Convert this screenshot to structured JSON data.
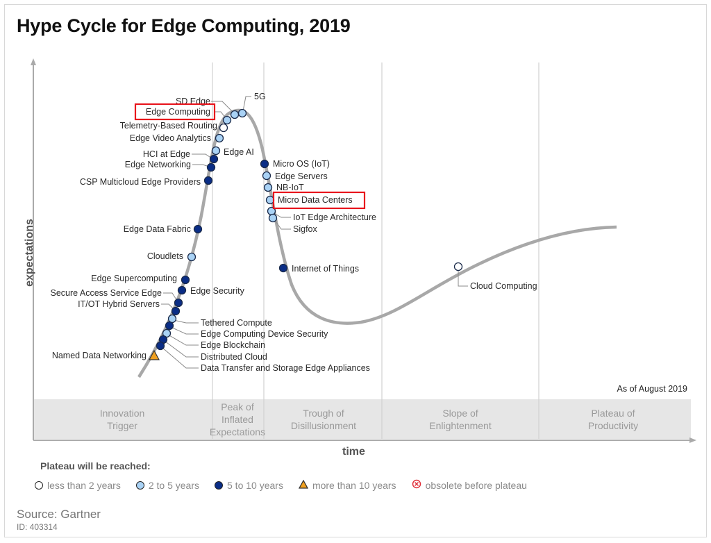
{
  "chart_data": {
    "type": "hype-cycle",
    "title": "Hype Cycle for Edge Computing, 2019",
    "xlabel": "time",
    "ylabel": "expectations",
    "as_of": "As of August 2019",
    "phases": [
      "Innovation Trigger",
      "Peak of Inflated Expectations",
      "Trough of Disillusionment",
      "Slope of Enlightenment",
      "Plateau of Productivity"
    ],
    "legend_title": "Plateau will be reached:",
    "legend": [
      {
        "key": "lt2",
        "label": "less than 2 years",
        "color": "#ffffff"
      },
      {
        "key": "2to5",
        "label": "2 to 5 years",
        "color": "#a9d2f5"
      },
      {
        "key": "5to10",
        "label": "5 to 10 years",
        "color": "#0a2d86"
      },
      {
        "key": "gt10",
        "label": "more than 10 years",
        "color": "#f0a020"
      },
      {
        "key": "obsolete",
        "label": "obsolete before plateau",
        "color": "#e0303a"
      }
    ],
    "technologies": [
      {
        "name": "SD Edge",
        "plateau": "2to5",
        "phase": "Peak of Inflated Expectations"
      },
      {
        "name": "5G",
        "plateau": "2to5",
        "phase": "Peak of Inflated Expectations"
      },
      {
        "name": "Edge Computing",
        "plateau": "2to5",
        "phase": "Peak of Inflated Expectations",
        "highlighted": true
      },
      {
        "name": "Telemetry-Based Routing",
        "plateau": "lt2",
        "phase": "Peak of Inflated Expectations"
      },
      {
        "name": "Edge Video Analytics",
        "plateau": "2to5",
        "phase": "Peak of Inflated Expectations"
      },
      {
        "name": "Edge AI",
        "plateau": "2to5",
        "phase": "Peak of Inflated Expectations"
      },
      {
        "name": "HCI at Edge",
        "plateau": "5to10",
        "phase": "Innovation Trigger"
      },
      {
        "name": "Edge Networking",
        "plateau": "5to10",
        "phase": "Innovation Trigger"
      },
      {
        "name": "CSP Multicloud Edge Providers",
        "plateau": "5to10",
        "phase": "Innovation Trigger"
      },
      {
        "name": "Edge Data Fabric",
        "plateau": "5to10",
        "phase": "Innovation Trigger"
      },
      {
        "name": "Cloudlets",
        "plateau": "2to5",
        "phase": "Innovation Trigger"
      },
      {
        "name": "Edge Supercomputing",
        "plateau": "5to10",
        "phase": "Innovation Trigger"
      },
      {
        "name": "Edge Security",
        "plateau": "5to10",
        "phase": "Innovation Trigger"
      },
      {
        "name": "Secure Access Service Edge",
        "plateau": "5to10",
        "phase": "Innovation Trigger"
      },
      {
        "name": "IT/OT Hybrid Servers",
        "plateau": "5to10",
        "phase": "Innovation Trigger"
      },
      {
        "name": "Tethered Compute",
        "plateau": "2to5",
        "phase": "Innovation Trigger"
      },
      {
        "name": "Edge Computing Device Security",
        "plateau": "5to10",
        "phase": "Innovation Trigger"
      },
      {
        "name": "Edge Blockchain",
        "plateau": "2to5",
        "phase": "Innovation Trigger"
      },
      {
        "name": "Distributed Cloud",
        "plateau": "5to10",
        "phase": "Innovation Trigger"
      },
      {
        "name": "Data Transfer and Storage Edge Appliances",
        "plateau": "5to10",
        "phase": "Innovation Trigger"
      },
      {
        "name": "Named Data Networking",
        "plateau": "gt10",
        "phase": "Innovation Trigger"
      },
      {
        "name": "Micro OS (IoT)",
        "plateau": "5to10",
        "phase": "Trough of Disillusionment"
      },
      {
        "name": "Edge Servers",
        "plateau": "2to5",
        "phase": "Trough of Disillusionment"
      },
      {
        "name": "NB-IoT",
        "plateau": "2to5",
        "phase": "Trough of Disillusionment"
      },
      {
        "name": "Micro Data Centers",
        "plateau": "2to5",
        "phase": "Trough of Disillusionment",
        "highlighted": true
      },
      {
        "name": "IoT Edge Architecture",
        "plateau": "2to5",
        "phase": "Trough of Disillusionment"
      },
      {
        "name": "Sigfox",
        "plateau": "2to5",
        "phase": "Trough of Disillusionment"
      },
      {
        "name": "Internet of Things",
        "plateau": "5to10",
        "phase": "Trough of Disillusionment"
      },
      {
        "name": "Cloud Computing",
        "plateau": "lt2",
        "phase": "Slope of Enlightenment"
      }
    ],
    "highlight_color": "#e8141c"
  },
  "footer": {
    "source": "Source: Gartner",
    "id": "ID: 403314"
  }
}
